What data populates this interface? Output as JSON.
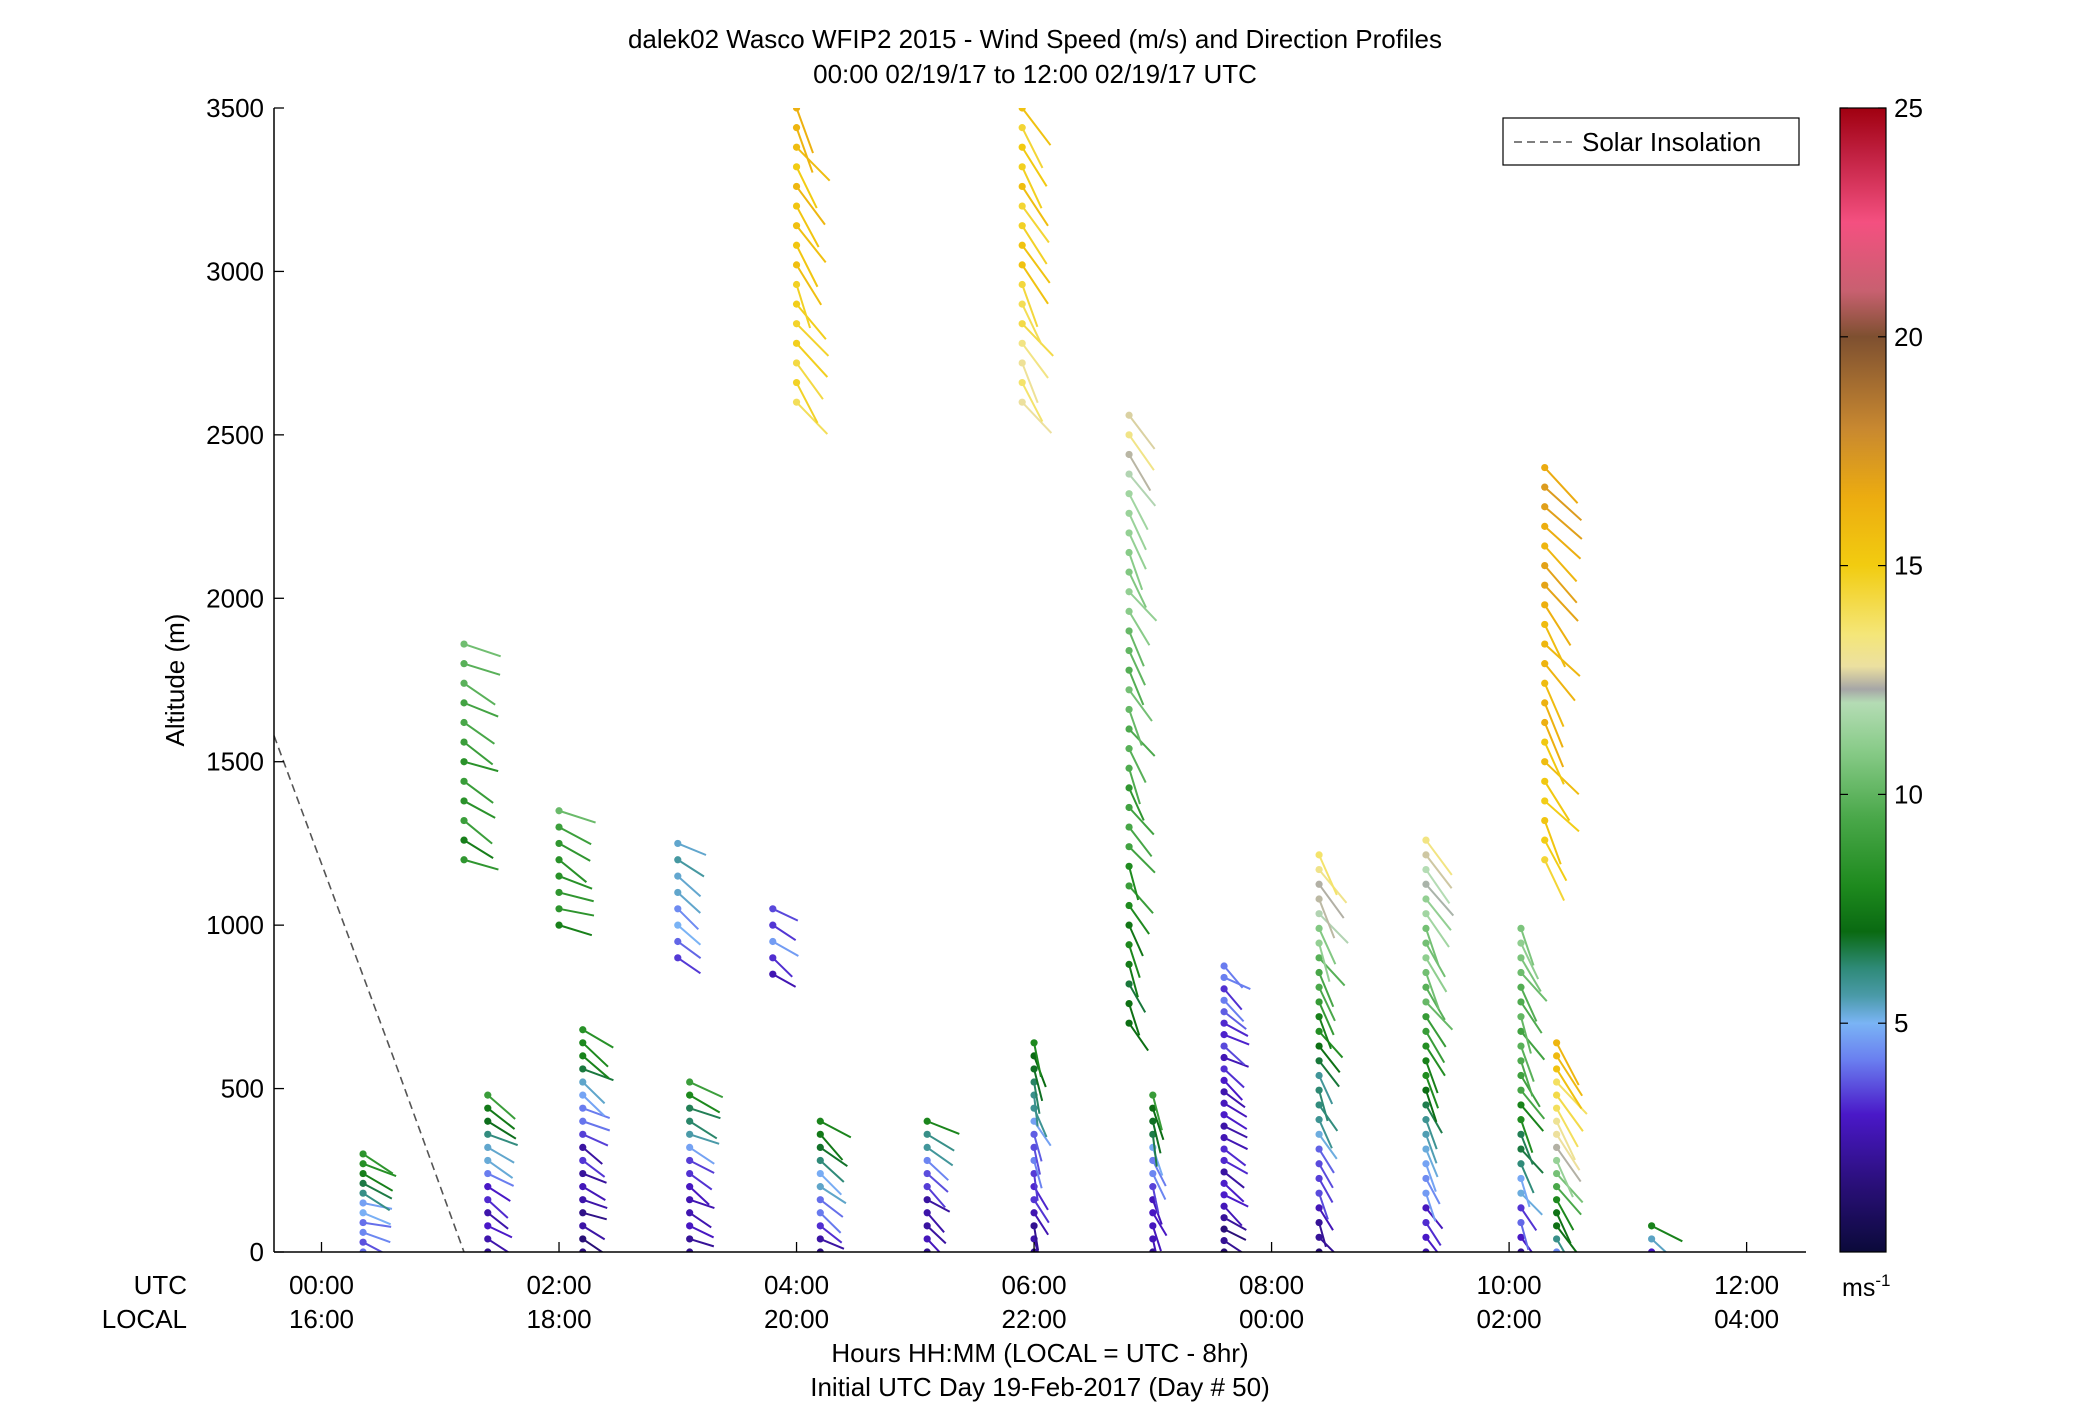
{
  "chart_data": {
    "type": "scatter",
    "title": "dalek02 Wasco WFIP2 2015 - Wind Speed (m/s) and Direction Profiles",
    "subtitle": "00:00 02/19/17 to 12:00 02/19/17  UTC",
    "ylabel": "Altitude (m)",
    "xlabel": "Hours HH:MM  (LOCAL = UTC - 8hr)",
    "xlabel2": "Initial UTC Day 19-Feb-2017 (Day # 50)",
    "x_row_labels": [
      "UTC",
      "LOCAL"
    ],
    "ylim": [
      0,
      3500
    ],
    "xlim_hours": [
      -0.4,
      12.5
    ],
    "y_ticks": [
      "0",
      "500",
      "1000",
      "1500",
      "2000",
      "2500",
      "3000",
      "3500"
    ],
    "x_ticks_utc": [
      "00:00",
      "02:00",
      "04:00",
      "06:00",
      "08:00",
      "10:00",
      "12:00"
    ],
    "x_ticks_local": [
      "16:00",
      "18:00",
      "20:00",
      "22:00",
      "00:00",
      "02:00",
      "04:00"
    ],
    "legend": {
      "entries": [
        "Solar Insolation"
      ],
      "placement": "top-right"
    },
    "colorbar": {
      "range": [
        0,
        25
      ],
      "ticks": [
        "5",
        "10",
        "15",
        "20",
        "25"
      ],
      "unit_base": "ms",
      "unit_exp": "-1",
      "stops": [
        {
          "v": 0,
          "c": "#0b0a3a"
        },
        {
          "v": 1.5,
          "c": "#2a0f7a"
        },
        {
          "v": 3,
          "c": "#4a18c8"
        },
        {
          "v": 4.2,
          "c": "#6a7ff0"
        },
        {
          "v": 5,
          "c": "#7ab4f5"
        },
        {
          "v": 5.6,
          "c": "#4a9aa8"
        },
        {
          "v": 6.2,
          "c": "#2f8a78"
        },
        {
          "v": 7,
          "c": "#0a6a12"
        },
        {
          "v": 8,
          "c": "#1e8a1e"
        },
        {
          "v": 9.5,
          "c": "#4aa84a"
        },
        {
          "v": 11,
          "c": "#8acc8a"
        },
        {
          "v": 12,
          "c": "#b4dcb4"
        },
        {
          "v": 12.3,
          "c": "#a6a6a6"
        },
        {
          "v": 12.8,
          "c": "#ece0a0"
        },
        {
          "v": 13.5,
          "c": "#f4e678"
        },
        {
          "v": 15,
          "c": "#f2cc10"
        },
        {
          "v": 16.5,
          "c": "#ecac10"
        },
        {
          "v": 18,
          "c": "#c88830"
        },
        {
          "v": 20,
          "c": "#7e5030"
        },
        {
          "v": 21,
          "c": "#c86070"
        },
        {
          "v": 22.5,
          "c": "#f45080"
        },
        {
          "v": 24,
          "c": "#c02040"
        },
        {
          "v": 25,
          "c": "#a00010"
        }
      ]
    },
    "solar_insolation": {
      "x": [
        -0.4,
        0.6,
        1.2
      ],
      "y": [
        1580,
        600,
        0
      ]
    },
    "series": [
      {
        "x": 0.35,
        "ymin": 0,
        "ymax": 300,
        "step": 30,
        "speed_low": [
          4,
          5,
          9
        ],
        "dir_deg": 250
      },
      {
        "x": 1.2,
        "ymin": 1200,
        "ymax": 1900,
        "step": 60,
        "speed_low": [
          8,
          9,
          11
        ],
        "dir_deg": 240
      },
      {
        "x": 1.4,
        "ymin": 0,
        "ymax": 500,
        "step": 40,
        "speed_low": [
          2,
          4,
          9
        ],
        "dir_deg": 240
      },
      {
        "x": 2.0,
        "ymin": 1000,
        "ymax": 1350,
        "step": 50,
        "speed_low": [
          8,
          8,
          10
        ],
        "dir_deg": 245
      },
      {
        "x": 2.2,
        "ymin": 0,
        "ymax": 700,
        "step": 40,
        "speed_low": [
          2,
          3,
          9
        ],
        "dir_deg": 240
      },
      {
        "x": 3.0,
        "ymin": 900,
        "ymax": 1250,
        "step": 50,
        "speed_low": [
          4,
          5,
          6
        ],
        "dir_deg": 240
      },
      {
        "x": 3.1,
        "ymin": 0,
        "ymax": 550,
        "step": 40,
        "speed_low": [
          2,
          4,
          9
        ],
        "dir_deg": 240
      },
      {
        "x": 4.0,
        "ymin": 2600,
        "ymax": 3500,
        "step": 60,
        "speed_low": [
          14,
          15,
          16
        ],
        "dir_deg": 210
      },
      {
        "x": 3.8,
        "ymin": 850,
        "ymax": 1050,
        "step": 50,
        "speed_low": [
          3,
          4,
          4
        ],
        "dir_deg": 240
      },
      {
        "x": 4.2,
        "ymin": 0,
        "ymax": 430,
        "step": 40,
        "speed_low": [
          2,
          5,
          9
        ],
        "dir_deg": 235
      },
      {
        "x": 5.1,
        "ymin": 0,
        "ymax": 430,
        "step": 40,
        "speed_low": [
          2,
          3,
          8
        ],
        "dir_deg": 235
      },
      {
        "x": 5.9,
        "ymin": 2600,
        "ymax": 3500,
        "step": 60,
        "speed_low": [
          13,
          15,
          15
        ],
        "dir_deg": 210
      },
      {
        "x": 6.0,
        "ymin": 0,
        "ymax": 650,
        "step": 40,
        "speed_low": [
          2,
          4,
          8
        ],
        "dir_deg": 200
      },
      {
        "x": 6.8,
        "ymin": 700,
        "ymax": 2600,
        "step": 60,
        "speed_low": [
          7,
          10,
          13
        ],
        "dir_deg": 210
      },
      {
        "x": 7.0,
        "ymin": 0,
        "ymax": 500,
        "step": 40,
        "speed_low": [
          2,
          4,
          9
        ],
        "dir_deg": 200
      },
      {
        "x": 7.6,
        "ymin": 0,
        "ymax": 900,
        "step": 35,
        "speed_low": [
          2,
          3,
          4
        ],
        "dir_deg": 235
      },
      {
        "x": 8.4,
        "ymin": 0,
        "ymax": 1250,
        "step": 45,
        "speed_low": [
          2,
          7,
          14
        ],
        "dir_deg": 210
      },
      {
        "x": 9.3,
        "ymin": 0,
        "ymax": 1300,
        "step": 45,
        "speed_low": [
          2,
          9,
          13
        ],
        "dir_deg": 210
      },
      {
        "x": 10.1,
        "ymin": 0,
        "ymax": 1000,
        "step": 45,
        "speed_low": [
          2,
          9,
          11
        ],
        "dir_deg": 210
      },
      {
        "x": 10.3,
        "ymin": 1200,
        "ymax": 2400,
        "step": 60,
        "speed_low": [
          15,
          16,
          17
        ],
        "dir_deg": 215
      },
      {
        "x": 10.4,
        "ymin": 0,
        "ymax": 650,
        "step": 40,
        "speed_low": [
          5,
          12,
          16
        ],
        "dir_deg": 215
      },
      {
        "x": 11.2,
        "ymin": 0,
        "ymax": 100,
        "step": 40,
        "speed_low": [
          3,
          6,
          9
        ],
        "dir_deg": 230
      }
    ]
  }
}
